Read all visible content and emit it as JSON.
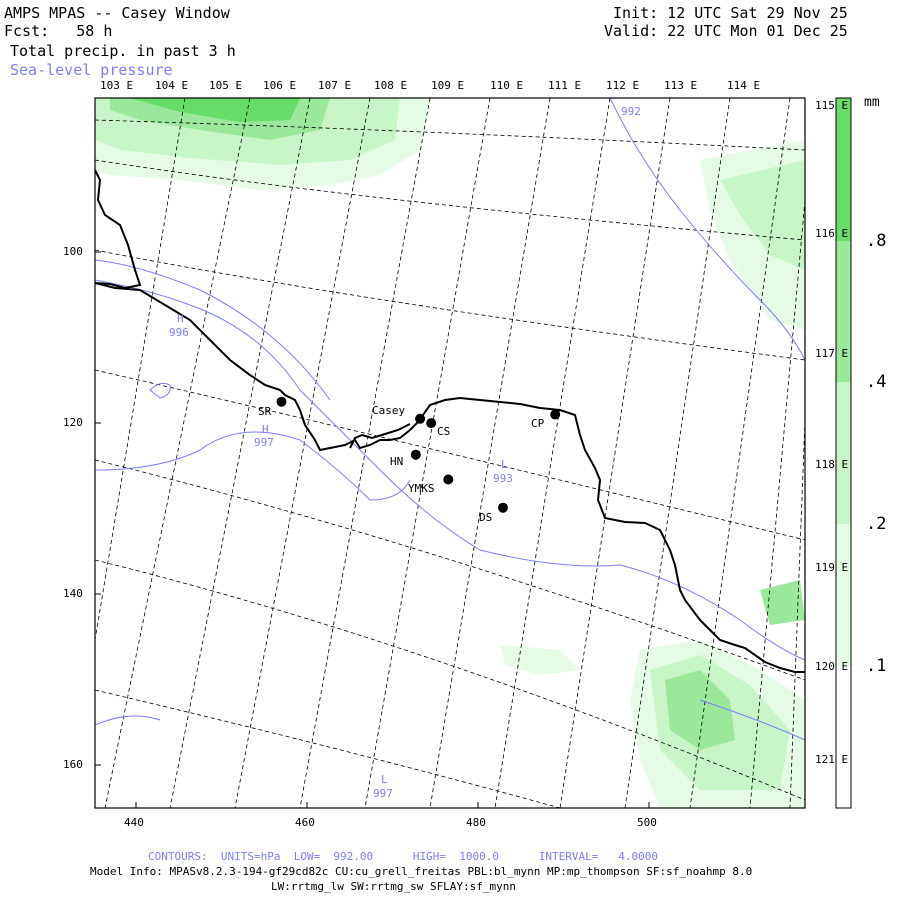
{
  "header": {
    "title": "AMPS MPAS -- Casey Window",
    "fcst": "Fcst:   58 h",
    "field": "Total precip. in past 3 h",
    "overlay": "Sea-level pressure",
    "init": "Init: 12 UTC Sat 29 Nov 25",
    "valid": "Valid: 22 UTC Mon 01 Dec 25"
  },
  "axes": {
    "x_ticks": [
      "440",
      "460",
      "480",
      "500"
    ],
    "y_ticks": [
      "100",
      "120",
      "140",
      "160"
    ],
    "lon_top": [
      "103 E",
      "104 E",
      "105 E",
      "106 E",
      "107 E",
      "108 E",
      "109 E",
      "110 E",
      "111 E",
      "112 E",
      "113 E",
      "114 E"
    ],
    "lon_right": [
      "115 E",
      "116 E",
      "117 E",
      "118 E",
      "119 E",
      "120 E",
      "121 E"
    ]
  },
  "colorbar": {
    "unit": "mm",
    "labels": [
      ".8",
      ".4",
      ".2",
      ".1"
    ]
  },
  "stations": [
    {
      "label": "SR",
      "x": 456.8,
      "y": 117.5
    },
    {
      "label": "Casey",
      "x": 473.0,
      "y": 119.5
    },
    {
      "label": "CS",
      "x": 474.3,
      "y": 120.0
    },
    {
      "label": "HN",
      "x": 472.5,
      "y": 123.7
    },
    {
      "label": "YMKS",
      "x": 476.3,
      "y": 126.6
    },
    {
      "label": "DS",
      "x": 482.7,
      "y": 129.9
    },
    {
      "label": "CP",
      "x": 488.8,
      "y": 119.0
    }
  ],
  "pressure_labels": [
    {
      "letter": "H",
      "value": "996"
    },
    {
      "letter": "H",
      "value": "997"
    },
    {
      "letter": "L",
      "value": "993"
    },
    {
      "letter": "L",
      "value": "997"
    },
    {
      "letter": "",
      "value": "992"
    }
  ],
  "footer": {
    "contours": "CONTOURS:  UNITS=hPa  LOW=  992.00      HIGH=  1000.0      INTERVAL=   4.0000",
    "model_info": "Model Info: MPASv8.2.3-194-gf29cd82c CU:cu_grell_freitas PBL:bl_mynn MP:mp_thompson SF:sf_noahmp 8.0",
    "model_info2": "LW:rrtmg_lw SW:rrtmg_sw SFLAY:sf_mynn"
  },
  "colors": {
    "precip_light": "#e6fbe6",
    "precip_mid": "#c8f5c8",
    "precip_strong": "#9ae89a",
    "precip_max": "#66dd66",
    "isobar": "#7d7dff",
    "coast": "#000000"
  }
}
